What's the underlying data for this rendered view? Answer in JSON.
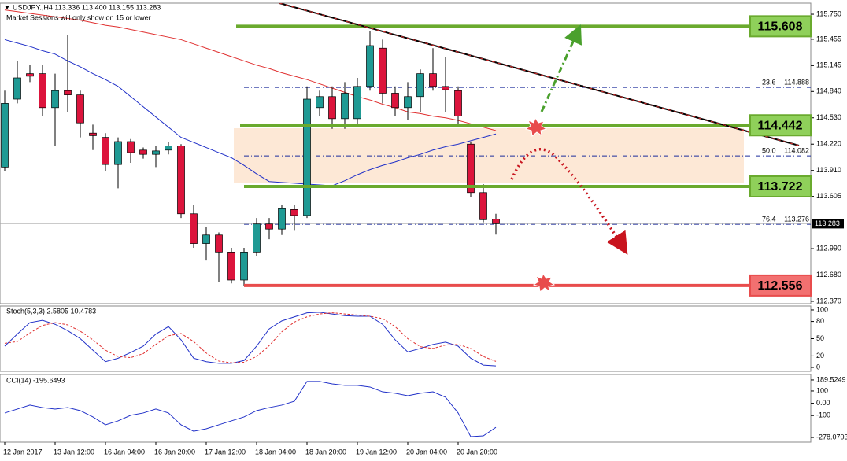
{
  "chart_data": [
    {
      "type": "candlestick",
      "title": "USDJPY.,H4  113.336 113.400 113.155 113.283",
      "subtitle": "Market Sessions will only show on 15 or lower",
      "categories": [
        "12 Jan 2017",
        null,
        null,
        null,
        "13 Jan 12:00",
        null,
        null,
        null,
        "16 Jan 04:00",
        null,
        null,
        null,
        "16 Jan 20:00",
        null,
        null,
        null,
        "17 Jan 12:00",
        null,
        null,
        null,
        "18 Jan 04:00",
        null,
        null,
        null,
        "18 Jan 20:00",
        null,
        null,
        null,
        "19 Jan 12:00",
        null,
        null,
        null,
        "20 Jan 04:00",
        null,
        null,
        null,
        "20 Jan 20:00",
        null,
        null,
        null
      ],
      "open": [
        113.95,
        114.75,
        115.05,
        115.05,
        114.65,
        114.85,
        114.8,
        114.35,
        114.3,
        113.98,
        114.25,
        114.15,
        114.1,
        114.15,
        114.2,
        113.4,
        113.05,
        113.15,
        112.95,
        112.62,
        112.95,
        113.28,
        113.22,
        113.45,
        113.38,
        114.65,
        114.78,
        114.52,
        114.52,
        114.9,
        115.35,
        114.82,
        114.65,
        114.78,
        115.05,
        114.9,
        114.85,
        114.22,
        113.65,
        113.336
      ],
      "high": [
        114.85,
        115.2,
        115.15,
        115.15,
        115.05,
        115.5,
        114.85,
        114.45,
        114.35,
        114.3,
        114.28,
        114.18,
        114.2,
        114.25,
        114.22,
        113.5,
        113.25,
        113.18,
        113.0,
        113.0,
        113.35,
        113.35,
        113.5,
        113.5,
        114.9,
        114.85,
        114.9,
        114.95,
        115.0,
        115.55,
        115.45,
        114.9,
        114.95,
        115.1,
        115.35,
        115.25,
        114.9,
        114.25,
        113.75,
        113.4
      ],
      "low": [
        113.9,
        114.7,
        114.95,
        114.55,
        114.2,
        114.6,
        114.3,
        114.15,
        113.9,
        113.7,
        114.0,
        114.05,
        113.95,
        114.1,
        113.35,
        113.0,
        112.85,
        112.6,
        112.58,
        112.55,
        112.9,
        113.1,
        113.15,
        113.2,
        113.35,
        114.55,
        114.4,
        114.4,
        114.45,
        114.85,
        114.7,
        114.55,
        114.5,
        114.6,
        114.85,
        114.6,
        114.45,
        113.6,
        113.3,
        113.155
      ],
      "close": [
        114.7,
        115.0,
        115.02,
        114.65,
        114.85,
        114.8,
        114.47,
        114.32,
        113.98,
        114.25,
        114.12,
        114.1,
        114.14,
        114.2,
        113.4,
        113.05,
        113.15,
        112.95,
        112.62,
        112.95,
        113.28,
        113.22,
        113.46,
        113.38,
        114.75,
        114.78,
        114.52,
        114.82,
        114.9,
        115.38,
        114.82,
        114.65,
        114.78,
        115.05,
        114.9,
        114.86,
        114.55,
        113.65,
        113.33,
        113.283
      ],
      "up_color": "#1f9a94",
      "down_color": "#dc143c",
      "series": [
        {
          "color": "#2030c8",
          "values": [
            115.45,
            115.41,
            115.37,
            115.32,
            115.28,
            115.2,
            115.13,
            115.05,
            114.98,
            114.9,
            114.78,
            114.66,
            114.54,
            114.42,
            114.3,
            114.24,
            114.18,
            114.12,
            114.06,
            113.97,
            113.87,
            113.78,
            113.77,
            113.76,
            113.75,
            113.74,
            113.73,
            113.79,
            113.86,
            113.92,
            113.97,
            114.01,
            114.06,
            114.1,
            114.15,
            114.19,
            114.22,
            114.26,
            114.3,
            114.34
          ]
        },
        {
          "color": "#e03030",
          "values": [
            115.8,
            115.78,
            115.76,
            115.74,
            115.72,
            115.7,
            115.68,
            115.65,
            115.62,
            115.6,
            115.57,
            115.54,
            115.51,
            115.48,
            115.45,
            115.4,
            115.35,
            115.3,
            115.25,
            115.2,
            115.15,
            115.11,
            115.06,
            115.02,
            114.98,
            114.93,
            114.88,
            114.83,
            114.78,
            114.74,
            114.69,
            114.65,
            114.6,
            114.58,
            114.55,
            114.53,
            114.5,
            114.46,
            114.42,
            114.38
          ]
        }
      ],
      "levels": [
        {
          "value": 115.608,
          "color": "#6aaa2e",
          "fill": "#8fd05a"
        },
        {
          "value": 114.442,
          "color": "#6aaa2e",
          "fill": "#8fd05a"
        },
        {
          "value": 113.722,
          "color": "#6aaa2e",
          "fill": "#8fd05a"
        },
        {
          "value": 112.556,
          "color": "#e84c4c",
          "fill": "#f27070"
        }
      ],
      "fib": [
        {
          "level": "23.6",
          "price": 114.888
        },
        {
          "level": "50.0",
          "price": 114.082
        },
        {
          "level": "76.4",
          "price": 113.276
        }
      ],
      "last_price": 113.283,
      "ylim": [
        112.342,
        115.88
      ],
      "yticks": [
        {
          "value": 115.75,
          "label": "115.750"
        },
        115.455,
        115.145,
        {
          "value": 114.84,
          "label": "114.840"
        },
        {
          "value": 114.53,
          "label": "114.530"
        },
        {
          "value": 114.22,
          "label": "114.220"
        },
        {
          "value": 113.91,
          "label": "113.910"
        },
        113.605,
        {
          "value": 112.99,
          "label": "112.990"
        },
        {
          "value": 112.68,
          "label": "112.680"
        },
        {
          "value": 112.37,
          "label": "112.370"
        }
      ]
    },
    {
      "type": "line",
      "title": "Stoch(5,3,3) 2.5805 10.4783",
      "series": [
        {
          "color": "#2030c8",
          "values": [
            37,
            58,
            78,
            82,
            75,
            64,
            50,
            30,
            10,
            16,
            26,
            37,
            58,
            71,
            48,
            16,
            10,
            7,
            7,
            12,
            37,
            67,
            81,
            88,
            95,
            96,
            93,
            90,
            89,
            89,
            75,
            48,
            27,
            33,
            40,
            44,
            37,
            16,
            4,
            2.5805
          ]
        },
        {
          "color": "#e03030",
          "dashed": true,
          "values": [
            42,
            45,
            60,
            73,
            78,
            74,
            63,
            48,
            30,
            19,
            17,
            24,
            40,
            55,
            59,
            45,
            25,
            11,
            8,
            9,
            19,
            38,
            62,
            79,
            88,
            93,
            95,
            93,
            91,
            89,
            85,
            71,
            50,
            36,
            33,
            39,
            40,
            33,
            19,
            10.4783
          ]
        }
      ],
      "ylim": [
        -6.8,
        106.8
      ],
      "yticks": [
        100,
        80,
        50,
        20,
        0
      ]
    },
    {
      "type": "line",
      "title": "CCI(14) -195.6493",
      "series": [
        {
          "color": "#2030c8",
          "values": [
            -79,
            -47,
            -15,
            -35,
            -47,
            -35,
            -60,
            -111,
            -175,
            -143,
            -98,
            -79,
            -47,
            -79,
            -175,
            -227,
            -207,
            -175,
            -143,
            -111,
            -60,
            -35,
            -15,
            17,
            177,
            177,
            157,
            145,
            145,
            132,
            93,
            81,
            61,
            81,
            93,
            49,
            -79,
            -271,
            -265,
            -195.6493
          ]
        }
      ],
      "ylim": [
        -316,
        234
      ],
      "yticks": [
        189.5249,
        100,
        {
          "value": 0,
          "label": "0.00"
        },
        -100,
        -278.0703
      ]
    }
  ]
}
